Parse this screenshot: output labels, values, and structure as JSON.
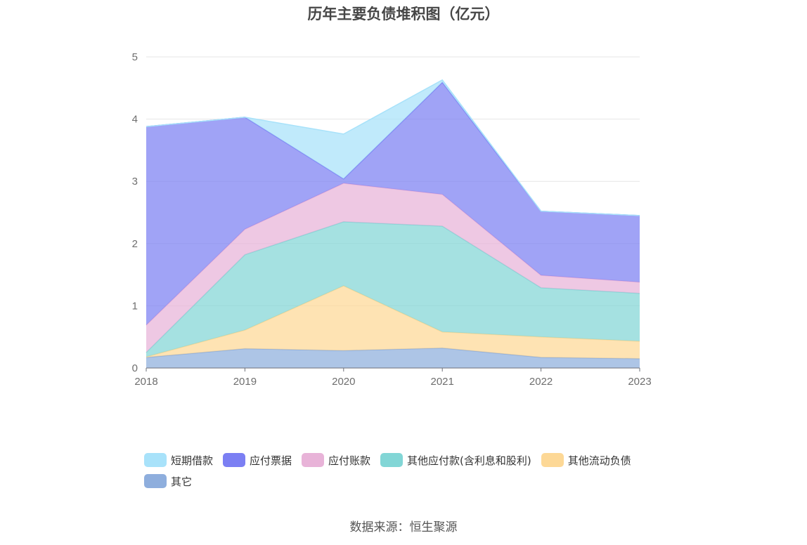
{
  "chart_data": {
    "type": "area",
    "stacked": true,
    "title": "历年主要负债堆积图（亿元）",
    "categories": [
      "2018",
      "2019",
      "2020",
      "2021",
      "2022",
      "2023"
    ],
    "ylim": [
      0,
      5
    ],
    "yticks": [
      0,
      1,
      2,
      3,
      4,
      5
    ],
    "grid": true,
    "legend_position": "bottom",
    "series": [
      {
        "name": "其它",
        "color": "#8eaedd",
        "values": [
          0.17,
          0.31,
          0.28,
          0.32,
          0.17,
          0.15
        ]
      },
      {
        "name": "其他流动负债",
        "color": "#fdd896",
        "values": [
          0.01,
          0.3,
          1.04,
          0.26,
          0.33,
          0.28
        ]
      },
      {
        "name": "其他应付款(含利息和股利)",
        "color": "#82d6d6",
        "values": [
          0.07,
          1.21,
          1.03,
          1.7,
          0.79,
          0.77
        ]
      },
      {
        "name": "应付账款",
        "color": "#e8b3d8",
        "values": [
          0.44,
          0.41,
          0.62,
          0.51,
          0.2,
          0.18
        ]
      },
      {
        "name": "应付票据",
        "color": "#7b7ff3",
        "values": [
          3.19,
          1.8,
          0.07,
          1.8,
          1.03,
          1.07
        ]
      },
      {
        "name": "短期借款",
        "color": "#a8e2fa",
        "values": [
          0.0,
          0.0,
          0.72,
          0.04,
          0.0,
          0.0
        ]
      }
    ],
    "legend_order": [
      "短期借款",
      "应付票据",
      "应付账款",
      "其他应付款(含利息和股利)",
      "其他流动负债",
      "其它"
    ]
  },
  "source": "数据来源：恒生聚源"
}
